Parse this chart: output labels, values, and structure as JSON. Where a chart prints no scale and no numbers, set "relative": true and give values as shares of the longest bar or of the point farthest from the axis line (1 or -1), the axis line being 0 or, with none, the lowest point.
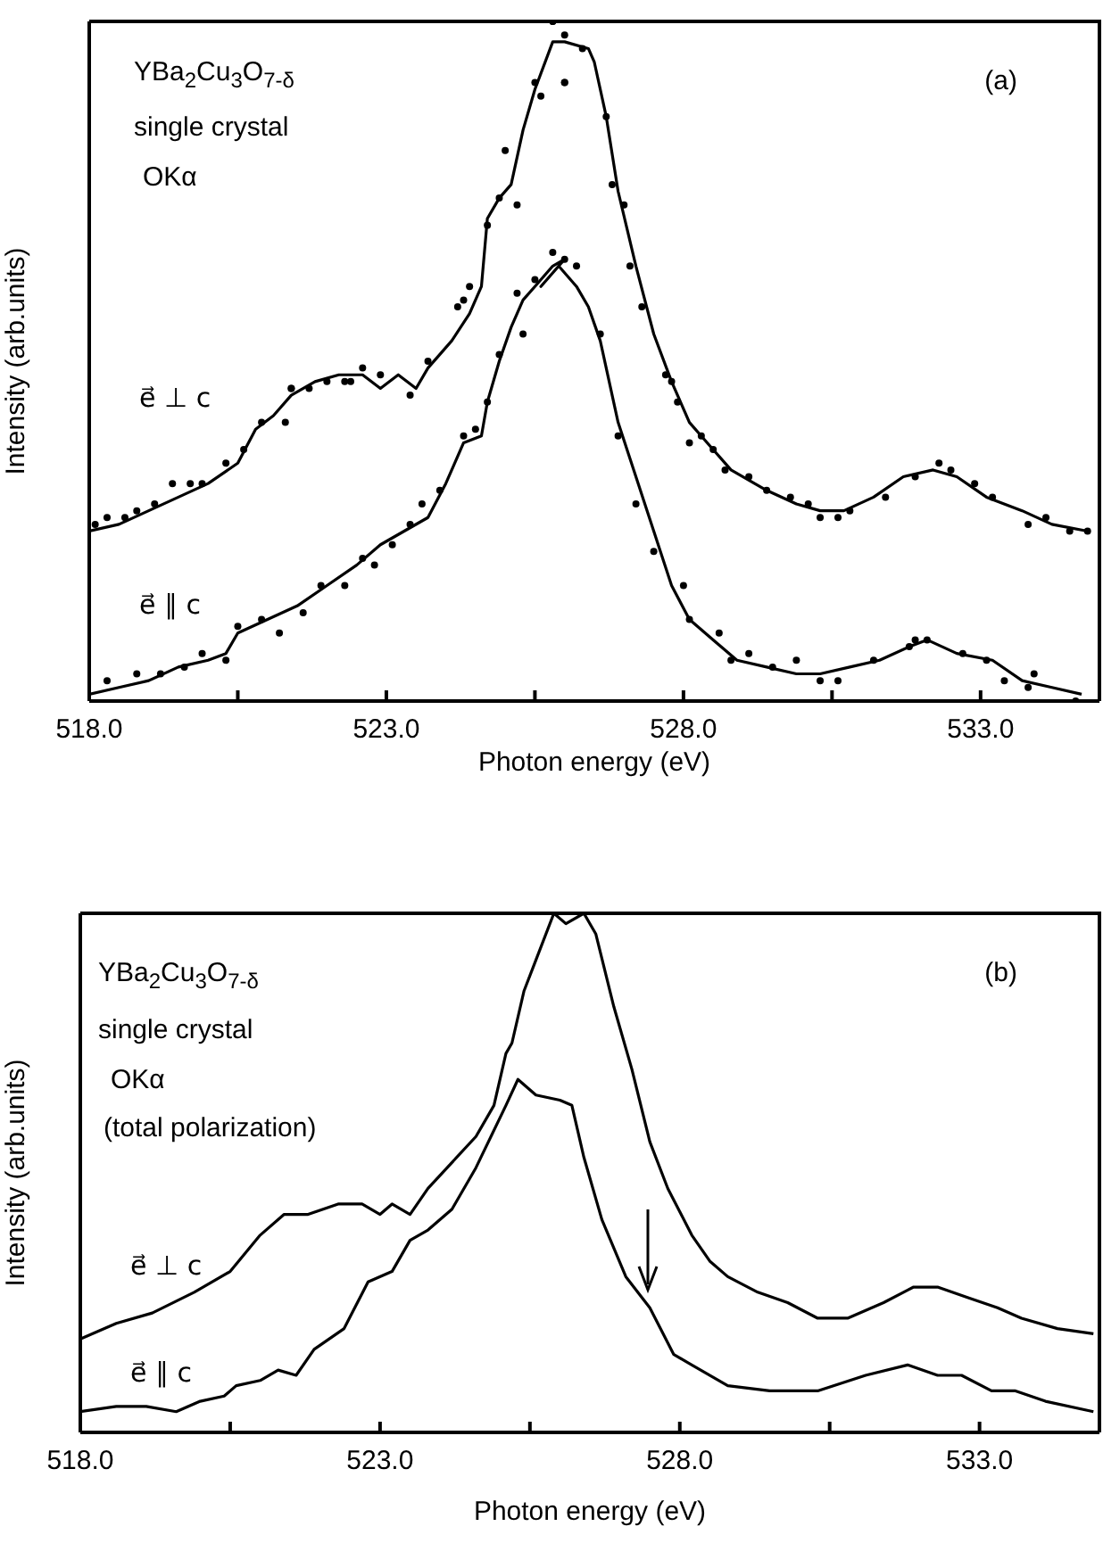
{
  "chart_data": [
    {
      "type": "line",
      "relative": true,
      "xlabel": "Photon energy (eV)",
      "ylabel": "Intensity (arb.units)",
      "xlim": [
        518,
        535
      ],
      "xticks": [
        {
          "value": 518,
          "label": "518.0"
        },
        {
          "value": 520.5,
          "label": null
        },
        {
          "value": 523,
          "label": "523.0"
        },
        {
          "value": 525.5,
          "label": null
        },
        {
          "value": 528,
          "label": "528.0"
        },
        {
          "value": 530.5,
          "label": null
        },
        {
          "value": 533,
          "label": "533.0"
        }
      ],
      "legend": false,
      "annotations": [
        "YBa$_{2}$Cu$_{3}$O$_{7-δ}$",
        "single crystal",
        "OKα",
        "(a)"
      ],
      "series": [
        {
          "type": "scatter",
          "color": "#000000",
          "marker": "circle",
          "x": [
            518.1,
            518.3,
            518.6,
            518.8,
            519.1,
            519.4,
            519.7,
            519.9,
            520.3,
            520.6,
            520.9,
            521.3,
            521.4,
            521.4,
            521.7,
            522.0,
            522.3,
            522.4,
            522.6,
            522.9,
            523.4,
            523.7,
            524.2,
            524.3,
            524.4,
            524.7,
            524.9,
            525.0,
            525.2,
            525.5,
            525.6,
            525.8,
            526.0,
            525.8,
            526.0,
            526.3,
            526.0,
            526.7,
            526.8,
            527.0,
            527.1,
            527.3,
            527.7,
            527.8,
            527.9,
            528.1,
            528.3,
            528.5,
            528.7,
            529.1,
            529.4,
            529.8,
            530.1,
            530.3,
            530.6,
            530.8,
            531.4,
            531.9,
            532.3,
            532.5,
            532.9,
            533.2,
            533.8,
            534.1,
            534.5,
            534.8
          ],
          "values": [
            0.26,
            0.27,
            0.27,
            0.28,
            0.29,
            0.32,
            0.32,
            0.32,
            0.35,
            0.37,
            0.41,
            0.41,
            0.46,
            0.46,
            0.46,
            0.47,
            0.47,
            0.47,
            0.49,
            0.48,
            0.45,
            0.5,
            0.58,
            0.59,
            0.61,
            0.7,
            0.74,
            0.81,
            0.73,
            0.91,
            0.89,
            1.0,
            0.91,
            1.0,
            0.98,
            0.96,
            0.91,
            0.86,
            0.76,
            0.73,
            0.64,
            0.58,
            0.48,
            0.47,
            0.44,
            0.38,
            0.39,
            0.37,
            0.34,
            0.33,
            0.31,
            0.3,
            0.29,
            0.27,
            0.27,
            0.28,
            0.3,
            0.33,
            0.35,
            0.34,
            0.32,
            0.3,
            0.26,
            0.27,
            0.25,
            0.25
          ]
        },
        {
          "type": "line",
          "name": "e⃗ ⊥ c",
          "color": "#000000",
          "marker": "none",
          "x": [
            518.0,
            518.5,
            519.0,
            519.5,
            520.0,
            520.5,
            520.8,
            521.1,
            521.4,
            521.8,
            522.2,
            522.6,
            522.9,
            523.2,
            523.5,
            523.7,
            524.1,
            524.4,
            524.6,
            524.7,
            524.9,
            525.1,
            525.3,
            525.5,
            525.8,
            526.0,
            526.4,
            526.5,
            526.7,
            526.9,
            527.2,
            527.5,
            527.8,
            528.1,
            528.4,
            528.8,
            529.4,
            529.9,
            530.3,
            530.7,
            531.2,
            531.7,
            532.2,
            532.6,
            533.1,
            533.7,
            534.2,
            534.8
          ],
          "values": [
            0.25,
            0.26,
            0.28,
            0.3,
            0.32,
            0.35,
            0.4,
            0.42,
            0.45,
            0.47,
            0.48,
            0.48,
            0.46,
            0.48,
            0.46,
            0.49,
            0.53,
            0.57,
            0.61,
            0.71,
            0.74,
            0.76,
            0.84,
            0.9,
            0.97,
            0.97,
            0.96,
            0.94,
            0.86,
            0.75,
            0.64,
            0.54,
            0.47,
            0.41,
            0.38,
            0.34,
            0.31,
            0.29,
            0.28,
            0.28,
            0.3,
            0.33,
            0.34,
            0.33,
            0.3,
            0.28,
            0.26,
            0.25
          ]
        },
        {
          "type": "scatter",
          "color": "#000000",
          "marker": "circle",
          "x": [
            518.3,
            518.8,
            519.2,
            519.6,
            519.9,
            520.3,
            520.5,
            520.9,
            521.2,
            521.6,
            521.9,
            522.3,
            522.6,
            522.8,
            523.1,
            523.4,
            523.6,
            523.9,
            524.3,
            524.5,
            524.7,
            524.9,
            525.2,
            525.3,
            525.5,
            525.8,
            526.0,
            526.2,
            526.6,
            526.9,
            527.2,
            527.5,
            528.0,
            528.1,
            528.6,
            528.8,
            529.1,
            529.5,
            529.9,
            530.3,
            530.6,
            531.2,
            531.8,
            531.9,
            532.1,
            532.7,
            533.1,
            533.4,
            533.8,
            533.9,
            534.6
          ],
          "values": [
            0.03,
            0.04,
            0.04,
            0.05,
            0.07,
            0.06,
            0.11,
            0.12,
            0.1,
            0.13,
            0.17,
            0.17,
            0.21,
            0.2,
            0.23,
            0.26,
            0.29,
            0.31,
            0.39,
            0.4,
            0.44,
            0.51,
            0.6,
            0.54,
            0.62,
            0.66,
            0.65,
            0.64,
            0.54,
            0.39,
            0.29,
            0.22,
            0.17,
            0.12,
            0.1,
            0.06,
            0.07,
            0.05,
            0.06,
            0.03,
            0.03,
            0.06,
            0.08,
            0.09,
            0.09,
            0.07,
            0.06,
            0.03,
            0.02,
            0.04,
            0.0
          ]
        },
        {
          "type": "line",
          "name": "e⃗ ∥ c",
          "color": "#000000",
          "marker": "none",
          "x": [
            518.0,
            518.5,
            519.0,
            519.5,
            520.0,
            520.3,
            520.5,
            521.0,
            521.5,
            522.0,
            522.5,
            522.9,
            523.3,
            523.7,
            524.0,
            524.3,
            524.6,
            524.7,
            524.9,
            525.1,
            525.3,
            525.5,
            525.8,
            526.0,
            525.6,
            525.9,
            526.2,
            526.4,
            526.6,
            526.9,
            527.2,
            527.5,
            527.8,
            528.1,
            528.5,
            528.9,
            529.4,
            529.9,
            530.3,
            530.8,
            531.3,
            531.8,
            532.1,
            532.6,
            533.2,
            533.7,
            534.2,
            534.7
          ],
          "values": [
            0.01,
            0.02,
            0.03,
            0.05,
            0.06,
            0.07,
            0.1,
            0.12,
            0.14,
            0.17,
            0.2,
            0.23,
            0.25,
            0.27,
            0.32,
            0.38,
            0.39,
            0.44,
            0.5,
            0.55,
            0.59,
            0.61,
            0.64,
            0.65,
            0.61,
            0.64,
            0.61,
            0.58,
            0.53,
            0.41,
            0.33,
            0.25,
            0.17,
            0.12,
            0.09,
            0.06,
            0.05,
            0.04,
            0.04,
            0.05,
            0.06,
            0.08,
            0.09,
            0.07,
            0.06,
            0.03,
            0.02,
            0.01
          ]
        }
      ]
    },
    {
      "type": "line",
      "relative": true,
      "xlabel": "Photon energy (eV)",
      "ylabel": "Intensity (arb.units)",
      "xlim": [
        518,
        535
      ],
      "xticks": [
        {
          "value": 518,
          "label": "518.0"
        },
        {
          "value": 520.5,
          "label": null
        },
        {
          "value": 523,
          "label": "523.0"
        },
        {
          "value": 525.5,
          "label": null
        },
        {
          "value": 528,
          "label": "528.0"
        },
        {
          "value": 530.5,
          "label": null
        },
        {
          "value": 533,
          "label": "533.0"
        }
      ],
      "legend": false,
      "annotations": [
        "YBa$_{2}$Cu$_{3}$O$_{7-δ}$",
        "single crystal",
        "OKα",
        "(total polarization)",
        "(b)"
      ],
      "series": [
        {
          "type": "line",
          "name": "e⃗ ⊥ c",
          "color": "#000000",
          "marker": "none",
          "x": [
            518.0,
            518.6,
            519.2,
            519.9,
            520.5,
            521.0,
            521.4,
            521.8,
            522.3,
            522.7,
            523.0,
            523.2,
            523.5,
            523.8,
            524.2,
            524.6,
            524.9,
            525.1,
            525.2,
            525.4,
            525.6,
            525.9,
            526.1,
            526.4,
            526.6,
            526.9,
            527.2,
            527.5,
            527.8,
            528.2,
            528.5,
            528.8,
            529.3,
            529.8,
            530.3,
            530.8,
            531.4,
            531.9,
            532.3,
            532.8,
            533.3,
            533.7,
            534.3,
            534.9
          ],
          "values": [
            0.18,
            0.21,
            0.23,
            0.27,
            0.31,
            0.38,
            0.42,
            0.42,
            0.44,
            0.44,
            0.42,
            0.44,
            0.42,
            0.47,
            0.52,
            0.57,
            0.63,
            0.73,
            0.75,
            0.85,
            0.91,
            1.0,
            0.98,
            1.0,
            0.96,
            0.82,
            0.7,
            0.56,
            0.47,
            0.38,
            0.33,
            0.3,
            0.27,
            0.25,
            0.22,
            0.22,
            0.25,
            0.28,
            0.28,
            0.26,
            0.24,
            0.22,
            0.2,
            0.19
          ]
        },
        {
          "type": "line",
          "name": "e⃗ ∥ c",
          "color": "#000000",
          "marker": "none",
          "x": [
            518.0,
            518.6,
            519.1,
            519.6,
            520.0,
            520.4,
            520.6,
            521.0,
            521.3,
            521.6,
            521.9,
            522.4,
            522.8,
            523.2,
            523.5,
            523.8,
            524.2,
            524.6,
            525.1,
            525.3,
            525.6,
            526.0,
            526.2,
            526.4,
            526.7,
            527.1,
            527.5,
            527.9,
            528.2,
            528.8,
            529.5,
            530.3,
            531.1,
            531.8,
            532.3,
            532.7,
            533.2,
            533.6,
            534.1,
            534.9
          ],
          "values": [
            0.04,
            0.05,
            0.05,
            0.04,
            0.06,
            0.07,
            0.09,
            0.1,
            0.12,
            0.11,
            0.16,
            0.2,
            0.29,
            0.31,
            0.37,
            0.39,
            0.43,
            0.51,
            0.63,
            0.68,
            0.65,
            0.64,
            0.63,
            0.53,
            0.41,
            0.3,
            0.24,
            0.15,
            0.13,
            0.09,
            0.08,
            0.08,
            0.11,
            0.13,
            0.11,
            0.11,
            0.08,
            0.08,
            0.06,
            0.04
          ]
        }
      ]
    }
  ]
}
